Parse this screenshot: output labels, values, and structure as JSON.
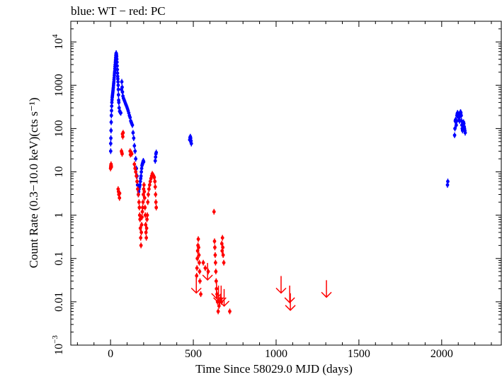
{
  "chart_data": {
    "type": "scatter",
    "title": "blue: WT − red: PC",
    "xlabel": "Time Since 58029.0 MJD (days)",
    "ylabel": "Count Rate (0.3−10.0 keV)(cts s⁻¹)",
    "xlim": [
      -240,
      2360
    ],
    "ylim": [
      0.001,
      30000
    ],
    "yscale": "log",
    "x_ticks": [
      0,
      500,
      1000,
      1500,
      2000
    ],
    "x_tick_labels": [
      "0",
      "500",
      "1000",
      "1500",
      "2000"
    ],
    "y_ticks": [
      0.001,
      0.01,
      0.1,
      1,
      10,
      100,
      1000,
      10000
    ],
    "y_tick_labels": [
      {
        "base": "10",
        "sup": "−3"
      },
      {
        "base": "0.01",
        "sup": ""
      },
      {
        "base": "0.1",
        "sup": ""
      },
      {
        "base": "1",
        "sup": ""
      },
      {
        "base": "10",
        "sup": ""
      },
      {
        "base": "100",
        "sup": ""
      },
      {
        "base": "1000",
        "sup": ""
      },
      {
        "base": "10",
        "sup": "4"
      }
    ],
    "grid": false,
    "colors": {
      "WT": "#0000ff",
      "PC": "#ff0000"
    },
    "series": [
      {
        "name": "WT",
        "marker": "point",
        "points": [
          [
            1,
            30
          ],
          [
            1,
            45
          ],
          [
            2,
            60
          ],
          [
            3,
            90
          ],
          [
            4,
            140
          ],
          [
            5,
            200
          ],
          [
            6,
            260
          ],
          [
            7,
            330
          ],
          [
            8,
            400
          ],
          [
            9,
            460
          ],
          [
            10,
            520
          ],
          [
            11,
            560
          ],
          [
            12,
            600
          ],
          [
            13,
            650
          ],
          [
            14,
            700
          ],
          [
            15,
            760
          ],
          [
            16,
            830
          ],
          [
            17,
            900
          ],
          [
            18,
            1000
          ],
          [
            19,
            1100
          ],
          [
            20,
            1200
          ],
          [
            21,
            1350
          ],
          [
            22,
            1500
          ],
          [
            23,
            1700
          ],
          [
            24,
            1900
          ],
          [
            25,
            2100
          ],
          [
            26,
            2400
          ],
          [
            27,
            2700
          ],
          [
            28,
            3000
          ],
          [
            29,
            3400
          ],
          [
            30,
            3800
          ],
          [
            31,
            4300
          ],
          [
            32,
            4800
          ],
          [
            33,
            5200
          ],
          [
            34,
            5500
          ],
          [
            35,
            5400
          ],
          [
            36,
            5000
          ],
          [
            37,
            4600
          ],
          [
            38,
            4000
          ],
          [
            39,
            3400
          ],
          [
            40,
            2800
          ],
          [
            41,
            2300
          ],
          [
            42,
            1900
          ],
          [
            43,
            1600
          ],
          [
            44,
            1400
          ],
          [
            45,
            1200
          ],
          [
            46,
            1000
          ],
          [
            47,
            800
          ],
          [
            48,
            600
          ],
          [
            49,
            450
          ],
          [
            50,
            400
          ],
          [
            52,
            300
          ],
          [
            55,
            250
          ],
          [
            58,
            240
          ],
          [
            62,
            230
          ],
          [
            66,
            800
          ],
          [
            68,
            1200
          ],
          [
            70,
            900
          ],
          [
            72,
            700
          ],
          [
            75,
            560
          ],
          [
            78,
            500
          ],
          [
            82,
            460
          ],
          [
            86,
            420
          ],
          [
            90,
            380
          ],
          [
            94,
            350
          ],
          [
            98,
            320
          ],
          [
            102,
            290
          ],
          [
            106,
            260
          ],
          [
            110,
            230
          ],
          [
            114,
            200
          ],
          [
            118,
            180
          ],
          [
            122,
            150
          ],
          [
            125,
            140
          ],
          [
            128,
            130
          ],
          [
            132,
            120
          ],
          [
            136,
            80
          ],
          [
            140,
            60
          ],
          [
            144,
            40
          ],
          [
            148,
            30
          ],
          [
            152,
            20
          ],
          [
            156,
            12
          ],
          [
            160,
            8
          ],
          [
            163,
            5
          ],
          [
            166,
            4
          ],
          [
            168,
            3
          ],
          [
            170,
            3.5
          ],
          [
            172,
            4
          ],
          [
            175,
            4.5
          ],
          [
            178,
            5
          ],
          [
            180,
            6
          ],
          [
            182,
            7
          ],
          [
            184,
            8
          ],
          [
            186,
            10
          ],
          [
            188,
            12
          ],
          [
            190,
            14
          ],
          [
            192,
            15
          ],
          [
            194,
            16
          ],
          [
            196,
            17
          ],
          [
            198,
            18
          ],
          [
            200,
            17
          ],
          [
            270,
            18
          ],
          [
            272,
            22
          ],
          [
            274,
            26
          ],
          [
            276,
            28
          ],
          [
            478,
            55
          ],
          [
            480,
            62
          ],
          [
            482,
            65
          ],
          [
            484,
            60
          ],
          [
            486,
            52
          ],
          [
            488,
            45
          ],
          [
            2035,
            5
          ],
          [
            2037,
            6
          ],
          [
            2078,
            70
          ],
          [
            2080,
            100
          ],
          [
            2082,
            150
          ],
          [
            2084,
            160
          ],
          [
            2086,
            140
          ],
          [
            2088,
            120
          ],
          [
            2090,
            150
          ],
          [
            2092,
            200
          ],
          [
            2094,
            220
          ],
          [
            2096,
            230
          ],
          [
            2098,
            220
          ],
          [
            2100,
            210
          ],
          [
            2102,
            200
          ],
          [
            2104,
            180
          ],
          [
            2106,
            160
          ],
          [
            2108,
            150
          ],
          [
            2110,
            200
          ],
          [
            2112,
            230
          ],
          [
            2114,
            240
          ],
          [
            2116,
            230
          ],
          [
            2118,
            200
          ],
          [
            2120,
            150
          ],
          [
            2122,
            120
          ],
          [
            2124,
            100
          ],
          [
            2126,
            90
          ],
          [
            2128,
            100
          ],
          [
            2130,
            120
          ],
          [
            2132,
            140
          ],
          [
            2134,
            130
          ],
          [
            2136,
            110
          ],
          [
            2138,
            100
          ],
          [
            2140,
            90
          ],
          [
            2142,
            80
          ]
        ]
      },
      {
        "name": "PC",
        "marker": "point",
        "points": [
          [
            0,
            12
          ],
          [
            1,
            13
          ],
          [
            2,
            14
          ],
          [
            3,
            15
          ],
          [
            4,
            14
          ],
          [
            5,
            13
          ],
          [
            46,
            4
          ],
          [
            48,
            3.5
          ],
          [
            50,
            3
          ],
          [
            54,
            2.5
          ],
          [
            55,
            3.2
          ],
          [
            66,
            30
          ],
          [
            68,
            28
          ],
          [
            70,
            26
          ],
          [
            72,
            75
          ],
          [
            74,
            65
          ],
          [
            76,
            80
          ],
          [
            118,
            30
          ],
          [
            120,
            25
          ],
          [
            124,
            28
          ],
          [
            128,
            26
          ],
          [
            144,
            15
          ],
          [
            148,
            12
          ],
          [
            152,
            10
          ],
          [
            156,
            8
          ],
          [
            160,
            6
          ],
          [
            164,
            4
          ],
          [
            168,
            3
          ],
          [
            172,
            2
          ],
          [
            174,
            1.5
          ],
          [
            176,
            1
          ],
          [
            178,
            0.8
          ],
          [
            180,
            0.5
          ],
          [
            182,
            0.3
          ],
          [
            184,
            0.2
          ],
          [
            186,
            0.4
          ],
          [
            188,
            0.6
          ],
          [
            190,
            0.9
          ],
          [
            192,
            1.2
          ],
          [
            194,
            1.5
          ],
          [
            196,
            2
          ],
          [
            198,
            3
          ],
          [
            200,
            4
          ],
          [
            202,
            5
          ],
          [
            204,
            3.5
          ],
          [
            206,
            2.5
          ],
          [
            208,
            1.5
          ],
          [
            210,
            1
          ],
          [
            212,
            0.6
          ],
          [
            214,
            0.4
          ],
          [
            216,
            0.3
          ],
          [
            218,
            0.5
          ],
          [
            220,
            0.8
          ],
          [
            222,
            1
          ],
          [
            225,
            2
          ],
          [
            228,
            3
          ],
          [
            232,
            4
          ],
          [
            236,
            5
          ],
          [
            240,
            6
          ],
          [
            244,
            7
          ],
          [
            248,
            8
          ],
          [
            252,
            9
          ],
          [
            256,
            8.5
          ],
          [
            260,
            8
          ],
          [
            264,
            7.5
          ],
          [
            268,
            6
          ],
          [
            270,
            4.5
          ],
          [
            272,
            3
          ],
          [
            274,
            2
          ],
          [
            276,
            1.5
          ],
          [
            520,
            0.04
          ],
          [
            522,
            0.06
          ],
          [
            524,
            0.1
          ],
          [
            526,
            0.15
          ],
          [
            528,
            0.2
          ],
          [
            530,
            0.28
          ],
          [
            532,
            0.18
          ],
          [
            534,
            0.12
          ],
          [
            536,
            0.08
          ],
          [
            538,
            0.05
          ],
          [
            540,
            0.03
          ],
          [
            545,
            0.015
          ],
          [
            560,
            0.08
          ],
          [
            572,
            0.06
          ],
          [
            590,
            0.05
          ],
          [
            625,
            1.2
          ],
          [
            628,
            0.25
          ],
          [
            630,
            0.18
          ],
          [
            632,
            0.12
          ],
          [
            634,
            0.08
          ],
          [
            636,
            0.05
          ],
          [
            638,
            0.03
          ],
          [
            640,
            0.02
          ],
          [
            643,
            0.015
          ],
          [
            646,
            0.01
          ],
          [
            650,
            0.006
          ],
          [
            655,
            0.008
          ],
          [
            660,
            0.01
          ],
          [
            665,
            0.012
          ],
          [
            670,
            0.01
          ],
          [
            672,
            0.22
          ],
          [
            674,
            0.15
          ],
          [
            676,
            0.3
          ],
          [
            678,
            0.18
          ],
          [
            680,
            0.12
          ],
          [
            684,
            0.08
          ],
          [
            720,
            0.006
          ]
        ]
      },
      {
        "name": "PC upper limits",
        "marker": "down-arrow",
        "points": [
          [
            518,
            0.02
          ],
          [
            586,
            0.04
          ],
          [
            640,
            0.015
          ],
          [
            652,
            0.012
          ],
          [
            668,
            0.012
          ],
          [
            686,
            0.01
          ],
          [
            1030,
            0.02
          ],
          [
            1082,
            0.012
          ],
          [
            1086,
            0.008
          ],
          [
            1304,
            0.016
          ]
        ]
      }
    ]
  }
}
